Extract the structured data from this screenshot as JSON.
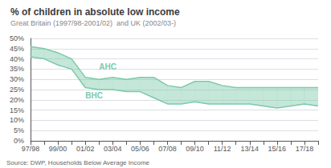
{
  "chart_data": {
    "type": "area",
    "title": "% of children in absolute low income",
    "subtitle": "Great Britain (1997/98-2001/02)  and UK (2002/03-)",
    "source": "Source: DWP, Households Below Average Income",
    "categories": [
      "97/98",
      null,
      "99/00",
      null,
      "01/02",
      null,
      "03/04",
      null,
      "05/06",
      null,
      "07/08",
      null,
      "09/10",
      null,
      "11/12",
      null,
      "13/14",
      null,
      "15/16",
      null,
      "17/18",
      null
    ],
    "series": [
      {
        "name": "AHC",
        "color": "#7dc9aa",
        "values": [
          46,
          45,
          43,
          40,
          31,
          30,
          31,
          30,
          31,
          31,
          27,
          26,
          29,
          29,
          27,
          26,
          26,
          26,
          26,
          26,
          26,
          26
        ]
      },
      {
        "name": "BHC",
        "color": "#7dc9aa",
        "values": [
          41,
          40,
          37,
          35,
          26,
          25,
          25,
          24,
          24,
          21,
          18,
          18,
          19,
          18,
          18,
          18,
          18,
          17,
          16,
          17,
          18,
          17
        ]
      }
    ],
    "annotations": [
      {
        "text": "AHC",
        "x": 5,
        "y": 36,
        "color": "#7dc9aa"
      },
      {
        "text": "BHC",
        "x": 4,
        "y": 22,
        "color": "#7dc9aa"
      }
    ],
    "ylim": [
      0,
      50
    ],
    "yticks": [
      {
        "value": 0,
        "label": "0%"
      },
      {
        "value": 5,
        "label": "5%"
      },
      {
        "value": 10,
        "label": "10%"
      },
      {
        "value": 15,
        "label": "15%"
      },
      {
        "value": 20,
        "label": "20%"
      },
      {
        "value": 25,
        "label": "25%"
      },
      {
        "value": 30,
        "label": "30%"
      },
      {
        "value": 35,
        "label": "35%"
      },
      {
        "value": 40,
        "label": "40%"
      },
      {
        "value": 45,
        "label": "45%"
      },
      {
        "value": 50,
        "label": "50%"
      }
    ],
    "grid": true
  }
}
